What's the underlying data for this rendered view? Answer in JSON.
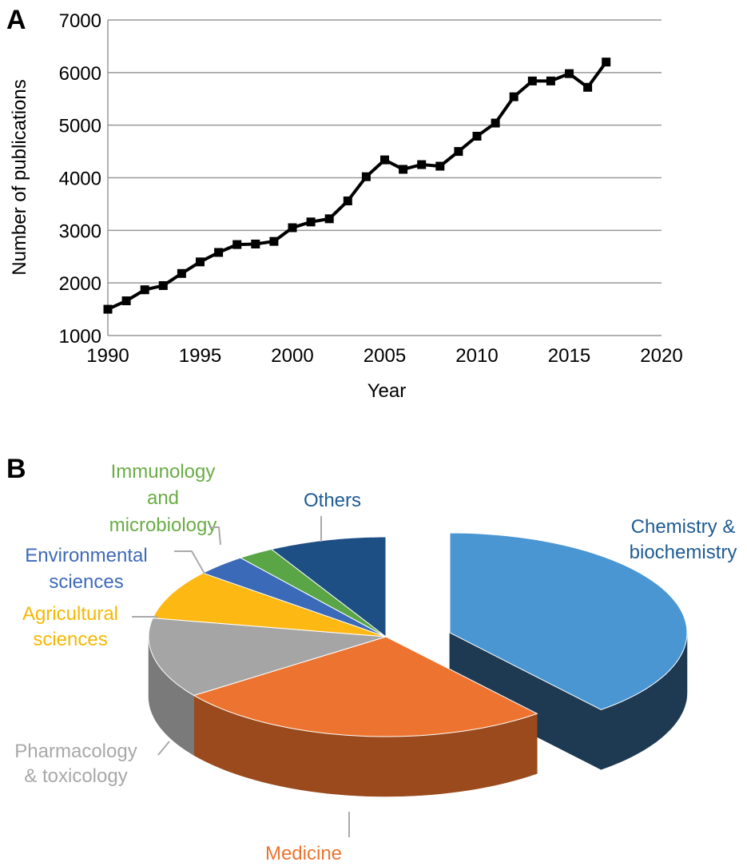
{
  "chart_data": [
    {
      "panel": "A",
      "type": "line",
      "title": "",
      "xlabel": "Year",
      "ylabel": "Number of publications",
      "xlim": [
        1990,
        2020
      ],
      "ylim": [
        1000,
        7000
      ],
      "xticks": [
        1990,
        1995,
        2000,
        2005,
        2010,
        2015,
        2020
      ],
      "yticks": [
        1000,
        2000,
        3000,
        4000,
        5000,
        6000,
        7000
      ],
      "grid": "horizontal",
      "x": [
        1990,
        1991,
        1992,
        1993,
        1994,
        1995,
        1996,
        1997,
        1998,
        1999,
        2000,
        2001,
        2002,
        2003,
        2004,
        2005,
        2006,
        2007,
        2008,
        2009,
        2010,
        2011,
        2012,
        2013,
        2014,
        2015,
        2016,
        2017
      ],
      "y": [
        1500,
        1660,
        1870,
        1950,
        2180,
        2400,
        2580,
        2730,
        2740,
        2790,
        3050,
        3160,
        3220,
        3560,
        4020,
        4340,
        4160,
        4250,
        4220,
        4500,
        4790,
        5040,
        5540,
        5840,
        5840,
        5980,
        5720,
        6200
      ],
      "color": "#000000"
    },
    {
      "panel": "B",
      "type": "pie",
      "style": "3d-exploded",
      "slices": [
        {
          "label": "Chemistry & biochemistry",
          "value": 39,
          "color": "#4a96d2",
          "side": "#1e3a52",
          "label_color": "#1f5c94",
          "exploded": true
        },
        {
          "label": "Medicine",
          "value": 26,
          "color": "#ec7430",
          "side": "#9a4a1c",
          "label_color": "#ec7430"
        },
        {
          "label": "Pharmacology & toxicology",
          "value": 13,
          "color": "#a5a5a5",
          "side": "#7a7a7a",
          "label_color": "#a8a8a8"
        },
        {
          "label": "Agricultural sciences",
          "value": 8,
          "color": "#fdb813",
          "side": "#c08a0a",
          "label_color": "#f5b800"
        },
        {
          "label": "Environmental sciences",
          "value": 3.5,
          "color": "#3a6ab8",
          "side": "#284a80",
          "label_color": "#3e6ab8"
        },
        {
          "label": "Immunology and microbiology",
          "value": 2.5,
          "color": "#5aa545",
          "side": "#3e7530",
          "label_color": "#6aac45"
        },
        {
          "label": "Others",
          "value": 8,
          "color": "#1d4f85",
          "side": "#13365c",
          "label_color": "#1f5c94"
        }
      ]
    }
  ],
  "panel_labels": {
    "a": "A",
    "b": "B"
  },
  "pie_labels": {
    "chem1": "Chemistry &",
    "chem2": "biochemistry",
    "med": "Medicine",
    "pharm1": "Pharmacology",
    "pharm2": "& toxicology",
    "agri1": "Agricultural",
    "agri2": "sciences",
    "env1": "Environmental",
    "env2": "sciences",
    "imm1": "Immunology",
    "imm2": "and",
    "imm3": "microbiology",
    "oth": "Others"
  }
}
